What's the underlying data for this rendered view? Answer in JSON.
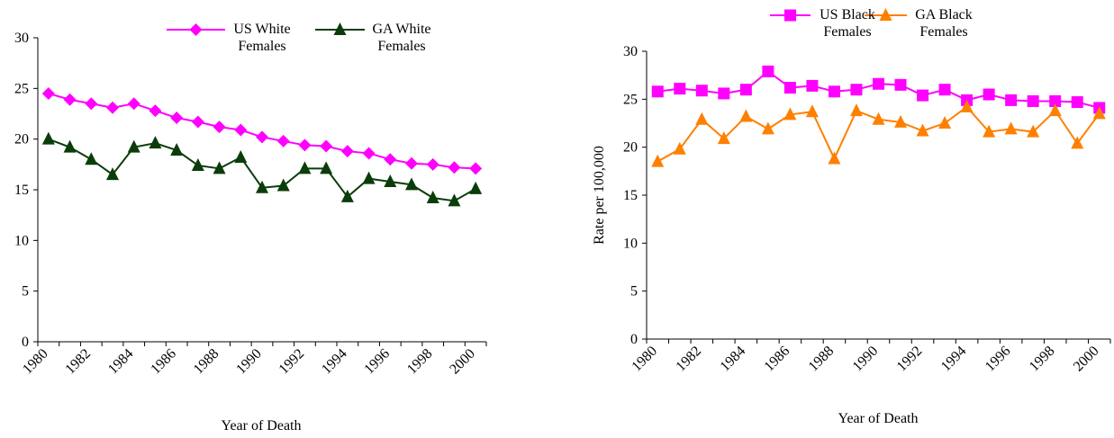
{
  "chart_data": [
    {
      "type": "line",
      "x_label": "Year of Death",
      "categories": [
        "1980",
        null,
        "1982",
        null,
        "1984",
        null,
        "1986",
        null,
        "1988",
        null,
        "1990",
        null,
        "1992",
        null,
        "1994",
        null,
        "1996",
        null,
        "1998",
        null,
        "2000"
      ],
      "ylim": [
        0,
        30
      ],
      "yticks": [
        0,
        5,
        10,
        15,
        20,
        25,
        30
      ],
      "grid": false,
      "series": [
        {
          "name": "US White Females",
          "color": "#ff00ff",
          "marker": "diamond",
          "values": [
            24.5,
            23.9,
            23.5,
            23.1,
            23.5,
            22.8,
            22.1,
            21.7,
            21.2,
            20.9,
            20.2,
            19.8,
            19.4,
            19.3,
            18.8,
            18.6,
            18.0,
            17.6,
            17.5,
            17.2,
            17.1
          ]
        },
        {
          "name": "GA White Females",
          "color": "#0b3d0b",
          "marker": "triangle",
          "values": [
            20.0,
            19.2,
            18.0,
            16.5,
            19.2,
            19.6,
            18.9,
            17.4,
            17.1,
            18.2,
            15.2,
            15.4,
            17.1,
            17.1,
            14.3,
            16.1,
            15.8,
            15.5,
            14.2,
            13.9,
            15.1
          ]
        }
      ]
    },
    {
      "type": "line",
      "x_label": "Year of Death",
      "y_label": "Rate per 100,000",
      "categories": [
        "1980",
        null,
        "1982",
        null,
        "1984",
        null,
        "1986",
        null,
        "1988",
        null,
        "1990",
        null,
        "1992",
        null,
        "1994",
        null,
        "1996",
        null,
        "1998",
        null,
        "2000"
      ],
      "ylim": [
        0,
        30
      ],
      "yticks": [
        0,
        5,
        10,
        15,
        20,
        25,
        30
      ],
      "grid": false,
      "series": [
        {
          "name": "US Black Females",
          "color": "#ff00ff",
          "marker": "square",
          "values": [
            25.8,
            26.1,
            25.9,
            25.6,
            26.0,
            27.9,
            26.2,
            26.4,
            25.8,
            26.0,
            26.6,
            26.5,
            25.4,
            26.0,
            24.9,
            25.5,
            24.9,
            24.8,
            24.8,
            24.7,
            24.1
          ]
        },
        {
          "name": "GA Black Females",
          "color": "#ff8000",
          "marker": "triangle",
          "values": [
            18.5,
            19.8,
            22.9,
            20.9,
            23.2,
            21.9,
            23.4,
            23.7,
            18.8,
            23.8,
            22.9,
            22.6,
            21.7,
            22.5,
            24.2,
            21.6,
            21.9,
            21.6,
            23.8,
            20.4,
            23.5
          ]
        }
      ]
    }
  ]
}
